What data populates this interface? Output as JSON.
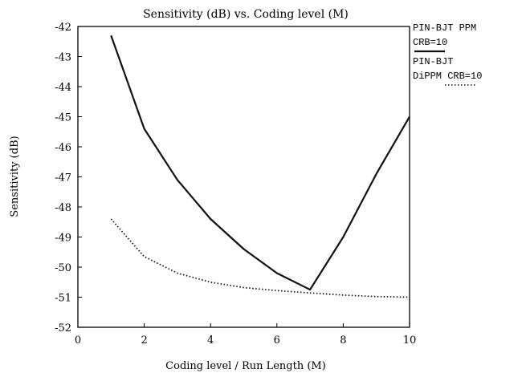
{
  "chart_data": {
    "type": "line",
    "title": "Sensitivity (dB) vs. Coding level (M)",
    "xlabel": "Coding level / Run Length (M)",
    "ylabel": "Sensitivity (dB)",
    "xlim": [
      0,
      10
    ],
    "ylim": [
      -52,
      -42
    ],
    "xticks": [
      "0",
      "2",
      "4",
      "6",
      "8",
      "10"
    ],
    "yticks": [
      "-42",
      "-43",
      "-44",
      "-45",
      "-46",
      "-47",
      "-48",
      "-49",
      "-50",
      "-51",
      "-52"
    ],
    "grid": false,
    "legend_position": "right",
    "series": [
      {
        "name": "PIN-BJT PPM CRB=10",
        "legend_lines": [
          "PIN-BJT PPM",
          "CRB=10"
        ],
        "style": "solid",
        "color": "#111111",
        "x": [
          1,
          2,
          3,
          4,
          5,
          6,
          7,
          8,
          9,
          10
        ],
        "y": [
          -42.3,
          -45.4,
          -47.1,
          -48.4,
          -49.4,
          -50.2,
          -50.75,
          -49.0,
          -46.9,
          -45.0
        ]
      },
      {
        "name": "PIN-BJT DiPPM CRB=10",
        "legend_lines": [
          "PIN-BJT",
          "DiPPM CRB=10"
        ],
        "style": "dotted",
        "color": "#111111",
        "x": [
          1,
          2,
          3,
          4,
          5,
          6,
          7,
          8,
          9,
          10
        ],
        "y": [
          -48.4,
          -49.65,
          -50.2,
          -50.5,
          -50.68,
          -50.78,
          -50.86,
          -50.93,
          -50.98,
          -51.0
        ]
      }
    ]
  }
}
